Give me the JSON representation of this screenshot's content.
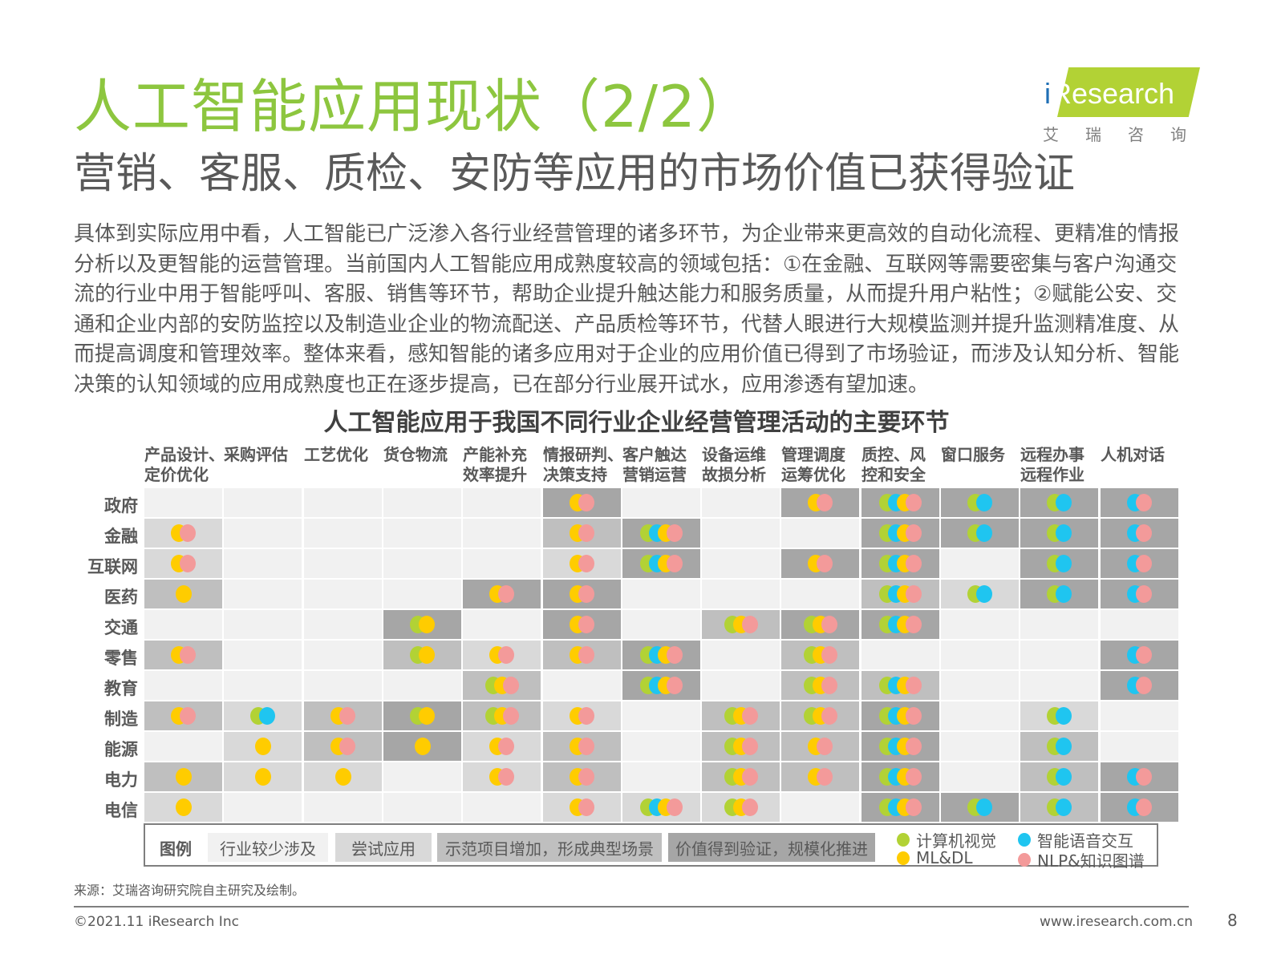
{
  "header": {
    "title": "人工智能应用现状（2/2）",
    "subtitle": "营销、客服、质检、安防等应用的市场价值已获得验证"
  },
  "logo": {
    "i": "i",
    "brand": "Research",
    "cn": "艾瑞咨询"
  },
  "body_text": [
    "具体到实际应用中看，人工智能已广泛渗入各行业经营管理的诸多环节，为企业带来更高效的自动化流程、更精准的情报",
    "分析以及更智能的运营管理。当前国内人工智能应用成熟度较高的领域包括：①在金融、互联网等需要密集与客户沟通交",
    "流的行业中用于智能呼叫、客服、销售等环节，帮助企业提升触达能力和服务质量，从而提升用户粘性；②赋能公安、交",
    "通和企业内部的安防监控以及制造业企业的物流配送、产品质检等环节，代替人眼进行大规模监测并提升监测精准度、从",
    "而提高调度和管理效率。整体来看，感知智能的诸多应用对于企业的应用价值已得到了市场验证，而涉及认知分析、智能",
    "决策的认知领域的应用成熟度也正在逐步提高，已在部分行业展开试水，应用渗透有望加速。"
  ],
  "chart": {
    "title": "人工智能应用于我国不同行业企业经营管理活动的主要环节"
  },
  "colors": {
    "title_green": "#8dc63f",
    "shade": [
      "#f1f1f1",
      "#d9d9d9",
      "#bfbfbf",
      "#a6a6a6"
    ],
    "G": "#b2d235",
    "B": "#1fc5f0",
    "Y": "#ffcc00",
    "P": "#f39a9a"
  },
  "chart_data": {
    "type": "table",
    "title": "人工智能应用于我国不同行业企业经营管理活动的主要环节",
    "columns": [
      "产品设计、定价优化",
      "采购评估",
      "工艺优化",
      "货仓物流",
      "产能补充效率提升",
      "情报研判、决策支持",
      "客户触达营销运营",
      "设备运维故损分析",
      "管理调度运筹优化",
      "质控、风控和安全",
      "窗口服务",
      "远程办事远程作业",
      "人机对话"
    ],
    "column_lines": [
      [
        "产品设计、",
        "定价优化"
      ],
      [
        "采购评估",
        ""
      ],
      [
        "工艺优化",
        ""
      ],
      [
        "货仓物流",
        ""
      ],
      [
        "产能补充",
        "效率提升"
      ],
      [
        "情报研判、",
        "决策支持"
      ],
      [
        "客户触达",
        "营销运营"
      ],
      [
        "设备运维",
        "故损分析"
      ],
      [
        "管理调度",
        "运筹优化"
      ],
      [
        "质控、风",
        "控和安全"
      ],
      [
        "窗口服务",
        ""
      ],
      [
        "远程办事",
        "远程作业"
      ],
      [
        "人机对话",
        ""
      ]
    ],
    "rows": [
      "政府",
      "金融",
      "互联网",
      "医药",
      "交通",
      "零售",
      "教育",
      "制造",
      "能源",
      "电力",
      "电信"
    ],
    "maturity_levels": [
      "行业较少涉及",
      "尝试应用",
      "示范项目增加，形成典型场景",
      "价值得到验证，规模化推进"
    ],
    "technologies": {
      "G": "计算机视觉",
      "B": "智能语音交互",
      "Y": "ML&DL",
      "P": "NLP&知识图谱"
    },
    "cells": [
      [
        [
          0,
          ""
        ],
        [
          0,
          ""
        ],
        [
          0,
          ""
        ],
        [
          0,
          ""
        ],
        [
          0,
          ""
        ],
        [
          3,
          "YP"
        ],
        [
          0,
          ""
        ],
        [
          0,
          ""
        ],
        [
          3,
          "YP"
        ],
        [
          3,
          "GBYP"
        ],
        [
          3,
          "GB"
        ],
        [
          3,
          "GB"
        ],
        [
          3,
          "BP"
        ]
      ],
      [
        [
          1,
          "YP"
        ],
        [
          0,
          ""
        ],
        [
          0,
          ""
        ],
        [
          0,
          ""
        ],
        [
          0,
          ""
        ],
        [
          2,
          "YP"
        ],
        [
          3,
          "GBYP"
        ],
        [
          0,
          ""
        ],
        [
          0,
          ""
        ],
        [
          3,
          "GBYP"
        ],
        [
          3,
          "GB"
        ],
        [
          3,
          "GB"
        ],
        [
          3,
          "BP"
        ]
      ],
      [
        [
          1,
          "YP"
        ],
        [
          0,
          ""
        ],
        [
          0,
          ""
        ],
        [
          0,
          ""
        ],
        [
          0,
          ""
        ],
        [
          1,
          "YP"
        ],
        [
          3,
          "GBYP"
        ],
        [
          0,
          ""
        ],
        [
          3,
          "YP"
        ],
        [
          3,
          "GBYP"
        ],
        [
          0,
          ""
        ],
        [
          3,
          "GB"
        ],
        [
          3,
          "BP"
        ]
      ],
      [
        [
          2,
          "Y"
        ],
        [
          0,
          ""
        ],
        [
          0,
          ""
        ],
        [
          0,
          ""
        ],
        [
          3,
          "YP"
        ],
        [
          3,
          "YP"
        ],
        [
          0,
          ""
        ],
        [
          0,
          ""
        ],
        [
          0,
          ""
        ],
        [
          2,
          "GBYP"
        ],
        [
          1,
          "GB"
        ],
        [
          3,
          "GB"
        ],
        [
          3,
          "BP"
        ]
      ],
      [
        [
          0,
          ""
        ],
        [
          0,
          ""
        ],
        [
          0,
          ""
        ],
        [
          3,
          "GY"
        ],
        [
          0,
          ""
        ],
        [
          3,
          "YP"
        ],
        [
          0,
          ""
        ],
        [
          2,
          "GYP"
        ],
        [
          3,
          "GYP"
        ],
        [
          3,
          "GBYP"
        ],
        [
          0,
          ""
        ],
        [
          0,
          ""
        ],
        [
          0,
          ""
        ]
      ],
      [
        [
          2,
          "YP"
        ],
        [
          0,
          ""
        ],
        [
          0,
          ""
        ],
        [
          2,
          "GY"
        ],
        [
          1,
          "YP"
        ],
        [
          2,
          "YP"
        ],
        [
          3,
          "GBYP"
        ],
        [
          0,
          ""
        ],
        [
          2,
          "GYP"
        ],
        [
          0,
          ""
        ],
        [
          0,
          ""
        ],
        [
          0,
          ""
        ],
        [
          3,
          "BP"
        ]
      ],
      [
        [
          0,
          ""
        ],
        [
          0,
          ""
        ],
        [
          0,
          ""
        ],
        [
          0,
          ""
        ],
        [
          2,
          "GYP"
        ],
        [
          0,
          ""
        ],
        [
          3,
          "GBYP"
        ],
        [
          0,
          ""
        ],
        [
          2,
          "GYP"
        ],
        [
          2,
          "GBYP"
        ],
        [
          0,
          ""
        ],
        [
          0,
          ""
        ],
        [
          3,
          "BP"
        ]
      ],
      [
        [
          2,
          "YP"
        ],
        [
          1,
          "GB"
        ],
        [
          2,
          "YP"
        ],
        [
          3,
          "GY"
        ],
        [
          2,
          "GYP"
        ],
        [
          1,
          "YP"
        ],
        [
          0,
          ""
        ],
        [
          2,
          "GYP"
        ],
        [
          2,
          "GYP"
        ],
        [
          3,
          "GBYP"
        ],
        [
          0,
          ""
        ],
        [
          1,
          "GB"
        ],
        [
          0,
          ""
        ]
      ],
      [
        [
          0,
          ""
        ],
        [
          1,
          "Y"
        ],
        [
          2,
          "YP"
        ],
        [
          3,
          "Y"
        ],
        [
          1,
          "YP"
        ],
        [
          2,
          "YP"
        ],
        [
          0,
          ""
        ],
        [
          2,
          "GYP"
        ],
        [
          2,
          "YP"
        ],
        [
          3,
          "GBYP"
        ],
        [
          0,
          ""
        ],
        [
          2,
          "GB"
        ],
        [
          0,
          ""
        ]
      ],
      [
        [
          2,
          "Y"
        ],
        [
          1,
          "Y"
        ],
        [
          1,
          "Y"
        ],
        [
          0,
          ""
        ],
        [
          1,
          "YP"
        ],
        [
          2,
          "YP"
        ],
        [
          0,
          ""
        ],
        [
          2,
          "GYP"
        ],
        [
          2,
          "YP"
        ],
        [
          3,
          "GBYP"
        ],
        [
          0,
          ""
        ],
        [
          2,
          "GB"
        ],
        [
          3,
          "BP"
        ]
      ],
      [
        [
          1,
          "Y"
        ],
        [
          0,
          ""
        ],
        [
          0,
          ""
        ],
        [
          0,
          ""
        ],
        [
          0,
          ""
        ],
        [
          1,
          "YP"
        ],
        [
          1,
          "GBYP"
        ],
        [
          1,
          "GYP"
        ],
        [
          0,
          ""
        ],
        [
          3,
          "GBYP"
        ],
        [
          3,
          "GB"
        ],
        [
          2,
          "GB"
        ],
        [
          3,
          "BP"
        ]
      ]
    ]
  },
  "legend": {
    "label": "图例",
    "levels": [
      "行业较少涉及",
      "尝试应用",
      "示范项目增加，形成典型场景",
      "价值得到验证，规模化推进"
    ],
    "tech": [
      {
        "key": "G",
        "label": "计算机视觉"
      },
      {
        "key": "B",
        "label": "智能语音交互"
      },
      {
        "key": "Y",
        "label": "ML&DL"
      },
      {
        "key": "P",
        "label": "NLP&知识图谱"
      }
    ]
  },
  "footer": {
    "source": "来源：艾瑞咨询研究院自主研究及绘制。",
    "copyright": "©2021.11 iResearch Inc",
    "website": "www.iresearch.com.cn",
    "page": "8"
  }
}
